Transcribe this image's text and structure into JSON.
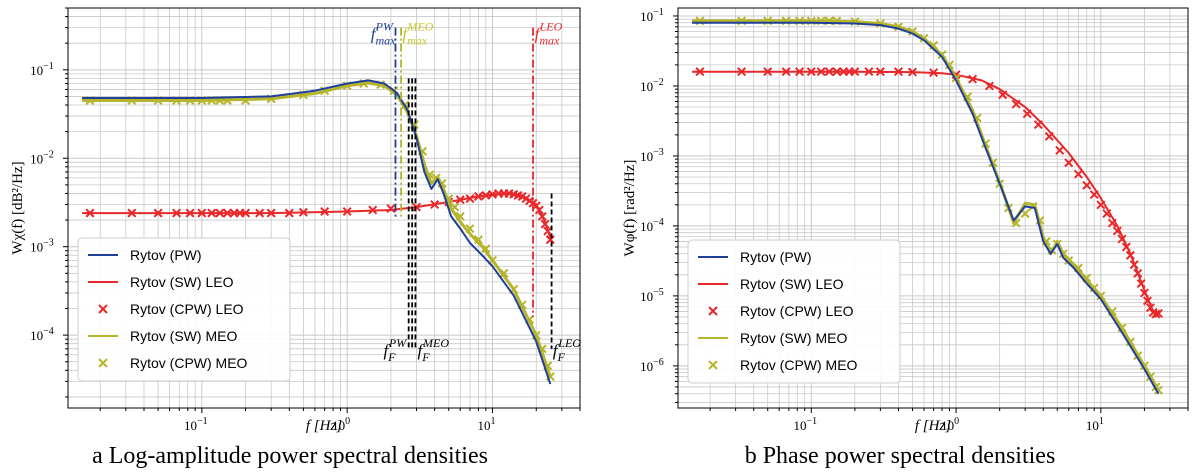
{
  "colors": {
    "pw": "#1f3f9a",
    "leo": "#e8282a",
    "meo": "#b5b52b",
    "meo_text": "#c6c62a",
    "fresnel": "#000000",
    "grid": "#c8c8c8"
  },
  "chart_data": [
    {
      "type": "line",
      "caption": "a Log-amplitude power spectral densities",
      "xlabel": "f [Hz]",
      "ylabel": "Wχ(f) [dB²/Hz]",
      "xscale": "log",
      "yscale": "log",
      "xlim": [
        0.012,
        40
      ],
      "ylim": [
        1.5e-05,
        0.5
      ],
      "grid": true,
      "legend_position": "lower-left",
      "xticks": [
        {
          "value": 0.1,
          "base": "10",
          "exp": "−1"
        },
        {
          "value": 1,
          "base": "10",
          "exp": "0"
        },
        {
          "value": 10,
          "base": "10",
          "exp": "1"
        }
      ],
      "yticks": [
        {
          "value": 0.0001,
          "base": "10",
          "exp": "−4"
        },
        {
          "value": 0.001,
          "base": "10",
          "exp": "−3"
        },
        {
          "value": 0.01,
          "base": "10",
          "exp": "−2"
        },
        {
          "value": 0.1,
          "base": "10",
          "exp": "−1"
        }
      ],
      "series": [
        {
          "name": "Rytov (PW)",
          "style": "line",
          "color": "pw",
          "x": [
            0.015,
            0.1,
            0.3,
            0.6,
            1.0,
            1.4,
            1.8,
            2.2,
            2.6,
            3.0,
            3.4,
            3.8,
            4.2,
            4.6,
            5.2,
            6.0,
            7.0,
            8.5,
            10,
            14,
            20,
            25
          ],
          "y": [
            0.048,
            0.048,
            0.05,
            0.058,
            0.07,
            0.076,
            0.07,
            0.055,
            0.035,
            0.017,
            0.007,
            0.0045,
            0.0058,
            0.004,
            0.0022,
            0.0016,
            0.0011,
            0.0008,
            0.0006,
            0.00028,
            8.5e-05,
            2.8e-05
          ]
        },
        {
          "name": "Rytov (SW) LEO",
          "style": "line",
          "color": "leo",
          "x": [
            0.015,
            0.3,
            1,
            2,
            3,
            5,
            8,
            12,
            16,
            20,
            23,
            25
          ],
          "y": [
            0.0024,
            0.0024,
            0.0025,
            0.0026,
            0.0028,
            0.0032,
            0.0037,
            0.004,
            0.0038,
            0.003,
            0.0019,
            0.00125
          ]
        },
        {
          "name": "Rytov (CPW) LEO",
          "style": "marker",
          "color": "leo",
          "x": [
            0.017,
            0.033,
            0.05,
            0.067,
            0.083,
            0.1,
            0.117,
            0.133,
            0.15,
            0.167,
            0.183,
            0.2,
            0.25,
            0.3,
            0.4,
            0.5,
            0.7,
            1,
            1.5,
            2,
            3,
            4,
            5,
            6,
            7,
            8,
            9,
            10,
            11,
            12,
            13,
            14,
            15,
            16,
            17,
            18,
            19,
            20,
            21,
            22,
            23,
            24,
            25
          ],
          "y": [
            0.0024,
            0.0024,
            0.0024,
            0.0024,
            0.0024,
            0.0024,
            0.0024,
            0.0024,
            0.0024,
            0.0024,
            0.0024,
            0.0024,
            0.0024,
            0.0024,
            0.0024,
            0.00245,
            0.0025,
            0.0025,
            0.0026,
            0.0027,
            0.0028,
            0.003,
            0.0032,
            0.0034,
            0.0035,
            0.0037,
            0.0038,
            0.0039,
            0.004,
            0.004,
            0.004,
            0.0039,
            0.0038,
            0.0037,
            0.0035,
            0.0033,
            0.0031,
            0.0029,
            0.0026,
            0.0022,
            0.0018,
            0.0015,
            0.0012
          ]
        },
        {
          "name": "Rytov (SW) MEO",
          "style": "line",
          "color": "meo",
          "x": [
            0.015,
            0.1,
            0.3,
            0.6,
            1.0,
            1.4,
            1.8,
            2.2,
            2.6,
            3.0,
            3.4,
            3.8,
            4.2,
            4.6,
            5.2,
            6.0,
            7.0,
            8.5,
            10,
            14,
            20,
            25
          ],
          "y": [
            0.045,
            0.045,
            0.047,
            0.054,
            0.066,
            0.071,
            0.066,
            0.052,
            0.033,
            0.018,
            0.0085,
            0.0052,
            0.0062,
            0.0045,
            0.0027,
            0.0019,
            0.0014,
            0.001,
            0.0007,
            0.00033,
            0.0001,
            3.4e-05
          ]
        },
        {
          "name": "Rytov (CPW) MEO",
          "style": "marker",
          "color": "meo",
          "x": [
            0.017,
            0.033,
            0.05,
            0.067,
            0.083,
            0.1,
            0.117,
            0.133,
            0.15,
            0.2,
            0.3,
            0.5,
            0.7,
            1,
            1.3,
            1.7,
            2.1,
            2.5,
            2.9,
            3.3,
            3.7,
            4.1,
            4.5,
            5,
            5.5,
            6,
            7,
            8,
            9,
            10,
            12,
            14,
            16,
            18,
            20,
            22,
            24,
            25
          ],
          "y": [
            0.045,
            0.045,
            0.045,
            0.045,
            0.045,
            0.045,
            0.045,
            0.045,
            0.045,
            0.045,
            0.047,
            0.052,
            0.058,
            0.066,
            0.07,
            0.068,
            0.058,
            0.04,
            0.024,
            0.012,
            0.0065,
            0.006,
            0.0052,
            0.0035,
            0.0028,
            0.0022,
            0.0016,
            0.0012,
            0.00095,
            0.0007,
            0.0005,
            0.00033,
            0.00022,
            0.00015,
            0.0001,
            7e-05,
            4.5e-05,
            3.4e-05
          ]
        }
      ],
      "annotations": [
        {
          "kind": "vline",
          "color": "pw",
          "x": 2.15,
          "y0": 0.0021,
          "y1": 0.3,
          "main": "f",
          "sub": "max",
          "sup": "PW",
          "label_x": 2.15,
          "label_y": 0.22,
          "anchor": "end"
        },
        {
          "kind": "vline",
          "color": "meo",
          "x": 2.35,
          "y0": 0.0021,
          "y1": 0.3,
          "main": "f",
          "sub": "max",
          "sup": "MEO",
          "label_x": 2.4,
          "label_y": 0.22,
          "anchor": "start"
        },
        {
          "kind": "vline",
          "color": "leo",
          "x": 19,
          "y0": 0.00016,
          "y1": 0.3,
          "main": "f",
          "sub": "max",
          "sup": "LEO",
          "label_x": 19.5,
          "label_y": 0.22,
          "anchor": "start"
        },
        {
          "kind": "vline",
          "color": "fresnel",
          "x": 2.65,
          "y0": 7e-05,
          "y1": 0.08,
          "main": "",
          "sub": "",
          "sup": "",
          "label_x": 0,
          "label_y": 0,
          "anchor": "start"
        },
        {
          "kind": "vline",
          "color": "fresnel",
          "x": 2.8,
          "y0": 7e-05,
          "y1": 0.08,
          "main": "f",
          "sub": "F",
          "sup": "PW",
          "label_x": 2.55,
          "label_y": 5.8e-05,
          "anchor": "end"
        },
        {
          "kind": "vline",
          "color": "fresnel",
          "x": 2.95,
          "y0": 7e-05,
          "y1": 0.08,
          "main": "f",
          "sub": "F",
          "sup": "MEO",
          "label_x": 3.05,
          "label_y": 5.8e-05,
          "anchor": "start"
        },
        {
          "kind": "vline",
          "color": "fresnel",
          "x": 25.5,
          "y0": 7e-05,
          "y1": 0.004,
          "main": "f",
          "sub": "F",
          "sup": "LEO",
          "label_x": 26,
          "label_y": 5.8e-05,
          "anchor": "start"
        }
      ]
    },
    {
      "type": "line",
      "caption": "b Phase power spectral densities",
      "xlabel": "f [Hz]",
      "ylabel": "Wφ(f) [rad²/Hz]",
      "xscale": "log",
      "yscale": "log",
      "xlim": [
        0.012,
        40
      ],
      "ylim": [
        2.5e-07,
        0.13
      ],
      "grid": true,
      "legend_position": "lower-left",
      "xticks": [
        {
          "value": 0.1,
          "base": "10",
          "exp": "−1"
        },
        {
          "value": 1,
          "base": "10",
          "exp": "0"
        },
        {
          "value": 10,
          "base": "10",
          "exp": "1"
        }
      ],
      "yticks": [
        {
          "value": 1e-06,
          "base": "10",
          "exp": "−6"
        },
        {
          "value": 1e-05,
          "base": "10",
          "exp": "−5"
        },
        {
          "value": 0.0001,
          "base": "10",
          "exp": "−4"
        },
        {
          "value": 0.001,
          "base": "10",
          "exp": "−3"
        },
        {
          "value": 0.01,
          "base": "10",
          "exp": "−2"
        },
        {
          "value": 0.1,
          "base": "10",
          "exp": "−1"
        }
      ],
      "series": [
        {
          "name": "Rytov (PW)",
          "style": "line",
          "color": "pw",
          "x": [
            0.015,
            0.1,
            0.2,
            0.3,
            0.4,
            0.5,
            0.6,
            0.8,
            1.0,
            1.3,
            1.6,
            2.0,
            2.5,
            3.0,
            3.5,
            4.0,
            4.5,
            5.0,
            5.5,
            6.5,
            8.0,
            10,
            14,
            20,
            25
          ],
          "y": [
            0.08,
            0.08,
            0.078,
            0.074,
            0.066,
            0.056,
            0.045,
            0.026,
            0.012,
            0.004,
            0.0013,
            0.0004,
            0.00012,
            0.00019,
            0.00018,
            6e-05,
            4e-05,
            5.5e-05,
            3.5e-05,
            2.5e-05,
            1.5e-05,
            9e-06,
            3e-06,
            9e-07,
            4e-07
          ]
        },
        {
          "name": "Rytov (SW) LEO",
          "style": "line",
          "color": "leo",
          "x": [
            0.015,
            0.2,
            0.5,
            0.8,
            1.0,
            1.5,
            2,
            3,
            4,
            6,
            8,
            10,
            13,
            16,
            20,
            23,
            25
          ],
          "y": [
            0.016,
            0.016,
            0.0158,
            0.0152,
            0.0145,
            0.012,
            0.009,
            0.005,
            0.0028,
            0.0011,
            0.0005,
            0.00025,
            0.0001,
            4e-05,
            1.2e-05,
            6e-06,
            5.5e-06
          ]
        },
        {
          "name": "Rytov (CPW) LEO",
          "style": "marker",
          "color": "leo",
          "x": [
            0.017,
            0.033,
            0.05,
            0.067,
            0.083,
            0.1,
            0.117,
            0.133,
            0.15,
            0.167,
            0.183,
            0.2,
            0.25,
            0.3,
            0.4,
            0.5,
            0.7,
            1,
            1.3,
            1.7,
            2.1,
            2.6,
            3.1,
            3.7,
            4.4,
            5.2,
            6,
            7,
            8,
            9,
            10,
            11,
            12,
            13,
            14,
            15,
            16,
            17,
            18,
            19,
            20,
            21,
            22,
            23,
            24,
            25
          ],
          "y": [
            0.016,
            0.016,
            0.016,
            0.016,
            0.016,
            0.016,
            0.016,
            0.016,
            0.016,
            0.016,
            0.016,
            0.016,
            0.016,
            0.016,
            0.016,
            0.0158,
            0.0155,
            0.0145,
            0.0125,
            0.01,
            0.0075,
            0.0055,
            0.004,
            0.0028,
            0.0019,
            0.0012,
            0.0008,
            0.00055,
            0.00038,
            0.00028,
            0.0002,
            0.00015,
            0.00011,
            8.5e-05,
            6.5e-05,
            5e-05,
            3.8e-05,
            2.8e-05,
            2.1e-05,
            1.5e-05,
            1.1e-05,
            8.5e-06,
            6.8e-06,
            5.8e-06,
            5.5e-06,
            5.6e-06
          ]
        },
        {
          "name": "Rytov (SW) MEO",
          "style": "line",
          "color": "meo",
          "x": [
            0.015,
            0.1,
            0.2,
            0.3,
            0.4,
            0.5,
            0.6,
            0.8,
            1.0,
            1.3,
            1.6,
            2.0,
            2.5,
            3.0,
            3.5,
            4.0,
            4.5,
            5.0,
            5.5,
            6.5,
            8.0,
            10,
            14,
            20,
            25
          ],
          "y": [
            0.085,
            0.085,
            0.083,
            0.078,
            0.07,
            0.06,
            0.048,
            0.028,
            0.013,
            0.0045,
            0.0014,
            0.00042,
            0.00011,
            0.00021,
            0.0002,
            7e-05,
            4e-05,
            6e-05,
            4e-05,
            2.8e-05,
            1.7e-05,
            1e-05,
            3.5e-06,
            1e-06,
            4.5e-07
          ]
        },
        {
          "name": "Rytov (CPW) MEO",
          "style": "marker",
          "color": "meo",
          "x": [
            0.017,
            0.033,
            0.05,
            0.067,
            0.083,
            0.1,
            0.117,
            0.133,
            0.15,
            0.2,
            0.3,
            0.4,
            0.5,
            0.6,
            0.7,
            0.8,
            0.9,
            1.0,
            1.2,
            1.4,
            1.6,
            1.8,
            2.0,
            2.3,
            2.6,
            3.0,
            3.4,
            3.8,
            4.2,
            4.6,
            5.0,
            5.5,
            6,
            7,
            8,
            9,
            10,
            12,
            14,
            16,
            18,
            20,
            22,
            24,
            25
          ],
          "y": [
            0.085,
            0.085,
            0.085,
            0.085,
            0.085,
            0.085,
            0.085,
            0.085,
            0.085,
            0.083,
            0.078,
            0.07,
            0.06,
            0.048,
            0.038,
            0.028,
            0.02,
            0.013,
            0.007,
            0.0035,
            0.0015,
            0.0008,
            0.0004,
            0.00018,
            0.00011,
            0.00015,
            0.00019,
            0.00012,
            6e-05,
            4.5e-05,
            5.5e-05,
            4e-05,
            3.2e-05,
            2.5e-05,
            1.8e-05,
            1.3e-05,
            1e-05,
            6e-06,
            3.5e-06,
            2.2e-06,
            1.4e-06,
            1e-06,
            7e-07,
            5e-07,
            4.5e-07
          ]
        }
      ],
      "annotations": []
    }
  ]
}
